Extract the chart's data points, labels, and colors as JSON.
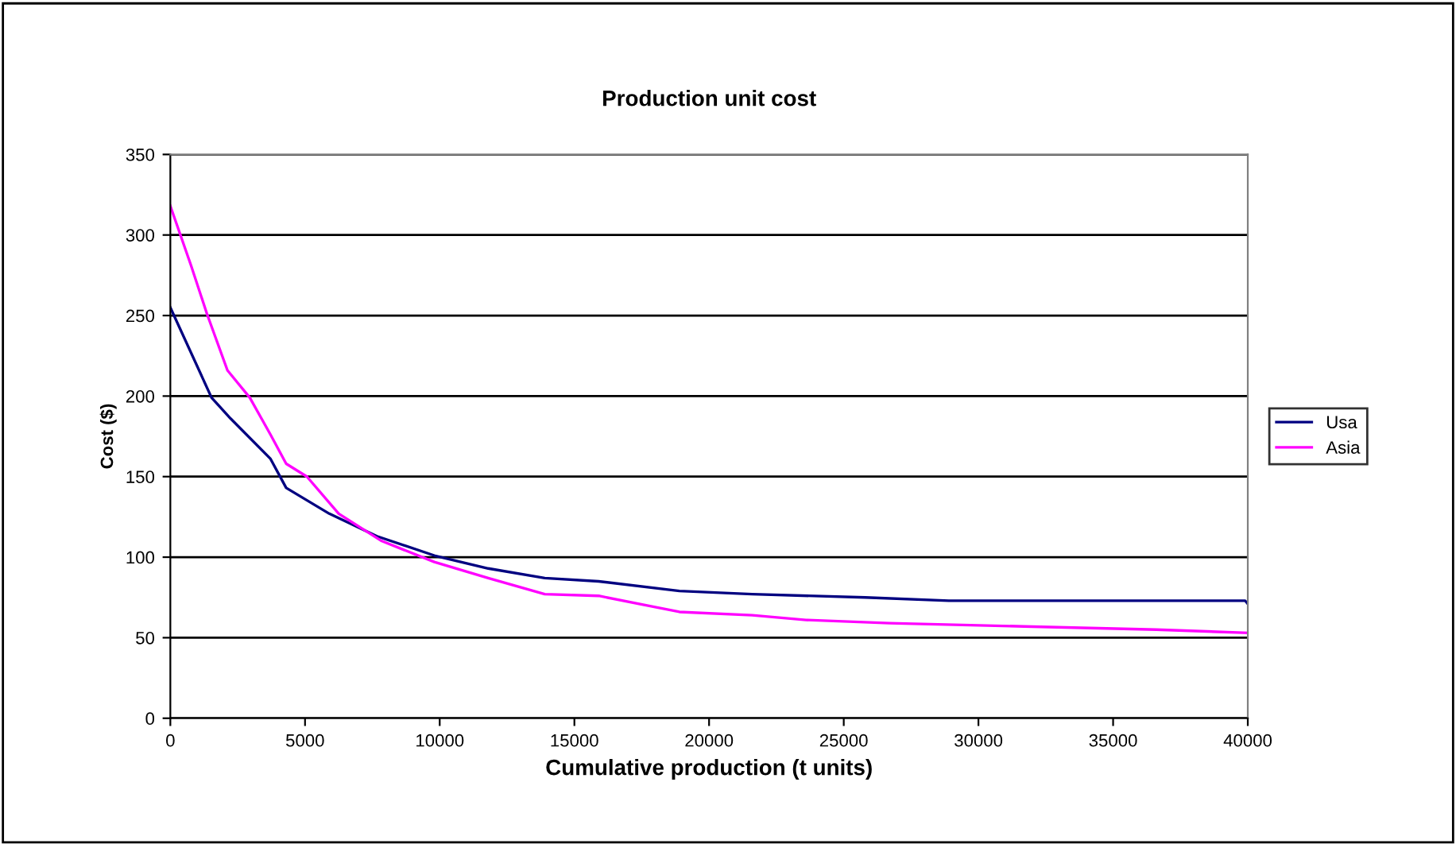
{
  "chart_data": {
    "type": "line",
    "title": "Production unit cost",
    "xlabel": "Cumulative production (t units)",
    "ylabel": "Cost ($)",
    "xlim": [
      0,
      40000
    ],
    "xticks": [
      0,
      5000,
      10000,
      15000,
      20000,
      25000,
      30000,
      35000,
      40000
    ],
    "ylim": [
      0,
      350
    ],
    "yticks": [
      0,
      50,
      100,
      150,
      200,
      250,
      300,
      350
    ],
    "grid": "y",
    "legend": "right",
    "marker": "none",
    "line_style": "solid",
    "series": [
      {
        "name": "Usa",
        "color": "#000080",
        "x": [
          0,
          1530,
          2240,
          3720,
          4300,
          5900,
          7670,
          9800,
          11800,
          13900,
          15900,
          18900,
          21600,
          25800,
          28900,
          39900,
          40000
        ],
        "values": [
          255,
          199,
          186,
          161,
          143,
          127,
          113,
          101,
          93,
          87,
          85,
          79,
          77,
          75,
          73,
          73,
          71
        ]
      },
      {
        "name": "Asia",
        "color": "#ff00ff",
        "x": [
          0,
          770,
          1360,
          2120,
          2950,
          3720,
          4300,
          5070,
          6250,
          7850,
          9800,
          11800,
          13900,
          15900,
          18900,
          21600,
          23600,
          26700,
          31700,
          36600,
          40000
        ],
        "values": [
          318,
          281,
          251,
          216,
          199,
          176,
          158,
          150,
          127,
          110,
          97,
          87,
          77,
          76,
          66,
          64,
          61,
          59,
          57,
          55,
          53
        ]
      }
    ]
  }
}
